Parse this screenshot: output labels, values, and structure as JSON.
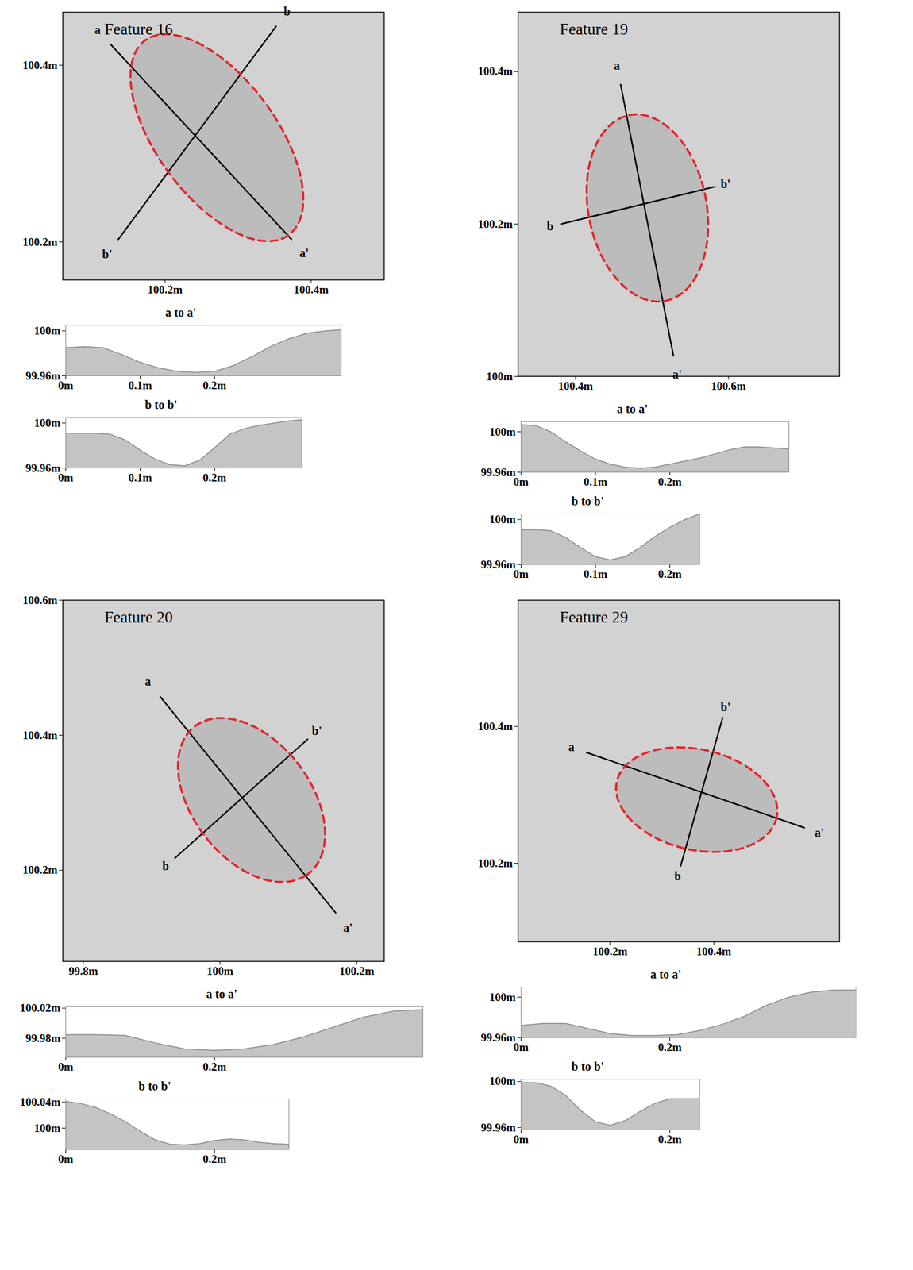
{
  "chart_data": [
    {
      "type": "map",
      "title": "Feature 16",
      "xlim": [
        100.06,
        100.5
      ],
      "ylim": [
        100.157,
        100.46
      ],
      "xticks": [
        {
          "value": 100.2,
          "label": "100.2m"
        },
        {
          "value": 100.4,
          "label": "100.4m"
        }
      ],
      "yticks": [
        {
          "value": 100.2,
          "label": "100.2m"
        },
        {
          "value": 100.4,
          "label": "100.4m"
        }
      ],
      "ellipse": {
        "center": [
          100.271,
          100.318
        ],
        "major_end": [
          100.383,
          100.222
        ],
        "minor_end": [
          100.309,
          100.385
        ],
        "color": "#e3242b",
        "line_style": "dashed"
      },
      "transects": [
        {
          "name": "a",
          "end_name": "a'",
          "from": [
            100.125,
            100.424
          ],
          "to": [
            100.373,
            100.203
          ]
        },
        {
          "name": "b",
          "end_name": "b'",
          "from": [
            100.352,
            100.444
          ],
          "to": [
            100.136,
            100.203
          ]
        }
      ],
      "profiles": [
        {
          "type": "area",
          "title": "a to a'",
          "color": "#c4c4c4",
          "x": [
            0,
            0.025,
            0.05,
            0.075,
            0.1,
            0.125,
            0.15,
            0.175,
            0.2,
            0.225,
            0.25,
            0.275,
            0.3,
            0.325,
            0.35,
            0.37
          ],
          "values": [
            99.985,
            99.986,
            99.985,
            99.979,
            99.972,
            99.967,
            99.964,
            99.963,
            99.964,
            99.969,
            99.977,
            99.986,
            99.993,
            99.998,
            100.0,
            100.001
          ],
          "xlim": [
            0,
            0.37
          ],
          "ylim": [
            99.96,
            100.005
          ],
          "xticks": [
            {
              "value": 0,
              "label": "0m"
            },
            {
              "value": 0.1,
              "label": "0.1m"
            },
            {
              "value": 0.2,
              "label": "0.2m"
            }
          ],
          "yticks": [
            {
              "value": 99.96,
              "label": "99.96m"
            },
            {
              "value": 100,
              "label": "100m"
            }
          ]
        },
        {
          "type": "area",
          "title": "b to b'",
          "color": "#c4c4c4",
          "x": [
            0,
            0.02,
            0.04,
            0.06,
            0.08,
            0.1,
            0.12,
            0.14,
            0.16,
            0.18,
            0.2,
            0.22,
            0.24,
            0.26,
            0.28,
            0.3,
            0.317
          ],
          "values": [
            99.991,
            99.991,
            99.991,
            99.99,
            99.985,
            99.976,
            99.968,
            99.963,
            99.962,
            99.967,
            99.978,
            99.99,
            99.995,
            99.998,
            100.0,
            100.002,
            100.003
          ],
          "xlim": [
            0,
            0.317
          ],
          "ylim": [
            99.96,
            100.005
          ],
          "xticks": [
            {
              "value": 0,
              "label": "0m"
            },
            {
              "value": 0.1,
              "label": "0.1m"
            },
            {
              "value": 0.2,
              "label": "0.2m"
            }
          ],
          "yticks": [
            {
              "value": 99.96,
              "label": "99.96m"
            },
            {
              "value": 100,
              "label": "100m"
            }
          ]
        }
      ]
    },
    {
      "type": "map",
      "title": "Feature 19",
      "xlim": [
        100.325,
        100.745
      ],
      "ylim": [
        100,
        100.478
      ],
      "xticks": [
        {
          "value": 100.4,
          "label": "100.4m"
        },
        {
          "value": 100.6,
          "label": "100.6m"
        }
      ],
      "yticks": [
        {
          "value": 100,
          "label": "100m"
        },
        {
          "value": 100.2,
          "label": "100.2m"
        },
        {
          "value": 100.4,
          "label": "100.4m"
        }
      ],
      "ellipse": {
        "center": [
          100.494,
          100.221
        ],
        "major_end": [
          100.517,
          100.099
        ],
        "minor_end": [
          100.57,
          100.235
        ],
        "color": "#e3242b",
        "line_style": "dashed"
      },
      "transects": [
        {
          "name": "a",
          "end_name": "a'",
          "from": [
            100.459,
            100.383
          ],
          "to": [
            100.528,
            100.027
          ]
        },
        {
          "name": "b",
          "end_name": "b'",
          "from": [
            100.381,
            100.2
          ],
          "to": [
            100.582,
            100.249
          ]
        }
      ],
      "profiles": [
        {
          "type": "area",
          "title": "a to a'",
          "color": "#c4c4c4",
          "x": [
            0,
            0.02,
            0.04,
            0.06,
            0.08,
            0.1,
            0.12,
            0.14,
            0.16,
            0.18,
            0.2,
            0.22,
            0.24,
            0.26,
            0.28,
            0.3,
            0.32,
            0.34,
            0.36
          ],
          "values": [
            100.007,
            100.006,
            100.0,
            99.99,
            99.981,
            99.973,
            99.968,
            99.965,
            99.964,
            99.965,
            99.968,
            99.971,
            99.974,
            99.978,
            99.982,
            99.985,
            99.985,
            99.984,
            99.983
          ],
          "xlim": [
            0,
            0.36
          ],
          "ylim": [
            99.96,
            100.01
          ],
          "xticks": [
            {
              "value": 0,
              "label": "0m"
            },
            {
              "value": 0.1,
              "label": "0.1m"
            },
            {
              "value": 0.2,
              "label": "0.2m"
            }
          ],
          "yticks": [
            {
              "value": 99.96,
              "label": "99.96m"
            },
            {
              "value": 100,
              "label": "100m"
            }
          ]
        },
        {
          "type": "area",
          "title": "b to b'",
          "color": "#c4c4c4",
          "x": [
            0,
            0.02,
            0.04,
            0.06,
            0.08,
            0.1,
            0.12,
            0.14,
            0.16,
            0.18,
            0.2,
            0.22,
            0.24
          ],
          "values": [
            99.991,
            99.991,
            99.99,
            99.984,
            99.975,
            99.967,
            99.964,
            99.967,
            99.975,
            99.985,
            99.993,
            100.0,
            100.005
          ],
          "xlim": [
            0,
            0.24
          ],
          "ylim": [
            99.96,
            100.005
          ],
          "xticks": [
            {
              "value": 0,
              "label": "0m"
            },
            {
              "value": 0.1,
              "label": "0.1m"
            },
            {
              "value": 0.2,
              "label": "0.2m"
            }
          ],
          "yticks": [
            {
              "value": 99.96,
              "label": "99.96m"
            },
            {
              "value": 100,
              "label": "100m"
            }
          ]
        }
      ]
    },
    {
      "type": "map",
      "title": "Feature 20",
      "xlim": [
        99.77,
        100.24
      ],
      "ylim": [
        100.065,
        100.6
      ],
      "xticks": [
        {
          "value": 99.8,
          "label": "99.8m"
        },
        {
          "value": 100,
          "label": "100m"
        },
        {
          "value": 100.2,
          "label": "100.2m"
        }
      ],
      "yticks": [
        {
          "value": 100.2,
          "label": "100.2m"
        },
        {
          "value": 100.4,
          "label": "100.4m"
        },
        {
          "value": 100.6,
          "label": "100.6m"
        }
      ],
      "ellipse": {
        "center": [
          100.046,
          100.304
        ],
        "major_end": [
          100.125,
          100.192
        ],
        "minor_end": [
          100.119,
          100.351
        ],
        "color": "#e3242b",
        "line_style": "dashed"
      },
      "transects": [
        {
          "name": "a",
          "end_name": "a'",
          "from": [
            99.9125,
            100.457
          ],
          "to": [
            100.169,
            100.137
          ]
        },
        {
          "name": "b",
          "end_name": "b'",
          "from": [
            99.934,
            100.218
          ],
          "to": [
            100.128,
            100.394
          ]
        }
      ],
      "profiles": [
        {
          "type": "area",
          "title": "a to a'",
          "color": "#c4c4c4",
          "x": [
            0,
            0.04,
            0.08,
            0.12,
            0.16,
            0.2,
            0.24,
            0.28,
            0.32,
            0.36,
            0.4,
            0.44,
            0.48
          ],
          "values": [
            99.985,
            99.985,
            99.984,
            99.974,
            99.966,
            99.964,
            99.966,
            99.972,
            99.982,
            99.995,
            100.008,
            100.016,
            100.018
          ],
          "xlim": [
            0,
            0.48
          ],
          "ylim": [
            99.955,
            100.022
          ],
          "xticks": [
            {
              "value": 0,
              "label": "0m"
            },
            {
              "value": 0.2,
              "label": "0.2m"
            }
          ],
          "yticks": [
            {
              "value": 99.98,
              "label": "99.98m"
            },
            {
              "value": 100.02,
              "label": "100.02m"
            }
          ]
        },
        {
          "type": "area",
          "title": "b to b'",
          "color": "#c4c4c4",
          "x": [
            0,
            0.02,
            0.04,
            0.06,
            0.08,
            0.1,
            0.12,
            0.14,
            0.16,
            0.18,
            0.2,
            0.22,
            0.24,
            0.26,
            0.28,
            0.3
          ],
          "values": [
            100.041,
            100.038,
            100.032,
            100.022,
            100.01,
            99.995,
            99.982,
            99.975,
            99.974,
            99.976,
            99.981,
            99.983,
            99.982,
            99.978,
            99.976,
            99.975
          ],
          "xlim": [
            0,
            0.3
          ],
          "ylim": [
            99.967,
            100.045
          ],
          "xticks": [
            {
              "value": 0,
              "label": "0m"
            },
            {
              "value": 0.2,
              "label": "0.2m"
            }
          ],
          "yticks": [
            {
              "value": 100,
              "label": "100m"
            },
            {
              "value": 100.04,
              "label": "100.04m"
            }
          ]
        }
      ]
    },
    {
      "type": "map",
      "title": "Feature 29",
      "xlim": [
        100.023,
        100.642
      ],
      "ylim": [
        100.085,
        100.585
      ],
      "xticks": [
        {
          "value": 100.2,
          "label": "100.2m"
        },
        {
          "value": 100.4,
          "label": "100.4m"
        }
      ],
      "yticks": [
        {
          "value": 100.2,
          "label": "100.2m"
        },
        {
          "value": 100.4,
          "label": "100.4m"
        }
      ],
      "ellipse": {
        "center": [
          100.367,
          100.293
        ],
        "major_end": [
          100.521,
          100.267
        ],
        "minor_end": [
          100.347,
          100.221
        ],
        "color": "#e3242b",
        "line_style": "dashed"
      },
      "transects": [
        {
          "name": "a",
          "end_name": "a'",
          "from": [
            100.155,
            100.362
          ],
          "to": [
            100.574,
            100.252
          ]
        },
        {
          "name": "b",
          "end_name": "b'",
          "from": [
            100.336,
            100.196
          ],
          "to": [
            100.417,
            100.413
          ]
        }
      ],
      "profiles": [
        {
          "type": "area",
          "title": "a to a'",
          "color": "#c4c4c4",
          "x": [
            0,
            0.03,
            0.06,
            0.09,
            0.12,
            0.15,
            0.18,
            0.21,
            0.24,
            0.27,
            0.3,
            0.33,
            0.36,
            0.39,
            0.42,
            0.45
          ],
          "values": [
            99.972,
            99.974,
            99.974,
            99.969,
            99.964,
            99.962,
            99.962,
            99.963,
            99.967,
            99.973,
            99.981,
            99.992,
            100.0,
            100.005,
            100.007,
            100.007
          ],
          "xlim": [
            0,
            0.45
          ],
          "ylim": [
            99.96,
            100.01
          ],
          "xticks": [
            {
              "value": 0,
              "label": "0m"
            },
            {
              "value": 0.2,
              "label": "0.2m"
            }
          ],
          "yticks": [
            {
              "value": 99.96,
              "label": "99.96m"
            },
            {
              "value": 100,
              "label": "100m"
            }
          ]
        },
        {
          "type": "area",
          "title": "b to b'",
          "color": "#c4c4c4",
          "x": [
            0,
            0.02,
            0.04,
            0.06,
            0.08,
            0.1,
            0.12,
            0.14,
            0.16,
            0.18,
            0.2,
            0.22,
            0.24
          ],
          "values": [
            99.999,
            99.999,
            99.996,
            99.988,
            99.975,
            99.965,
            99.962,
            99.966,
            99.974,
            99.981,
            99.985,
            99.985,
            99.985
          ],
          "xlim": [
            0,
            0.24
          ],
          "ylim": [
            99.958,
            100.002
          ],
          "xticks": [
            {
              "value": 0,
              "label": "0m"
            },
            {
              "value": 0.2,
              "label": "0.2m"
            }
          ],
          "yticks": [
            {
              "value": 99.96,
              "label": "99.96m"
            },
            {
              "value": 100,
              "label": "100m"
            }
          ]
        }
      ]
    }
  ]
}
